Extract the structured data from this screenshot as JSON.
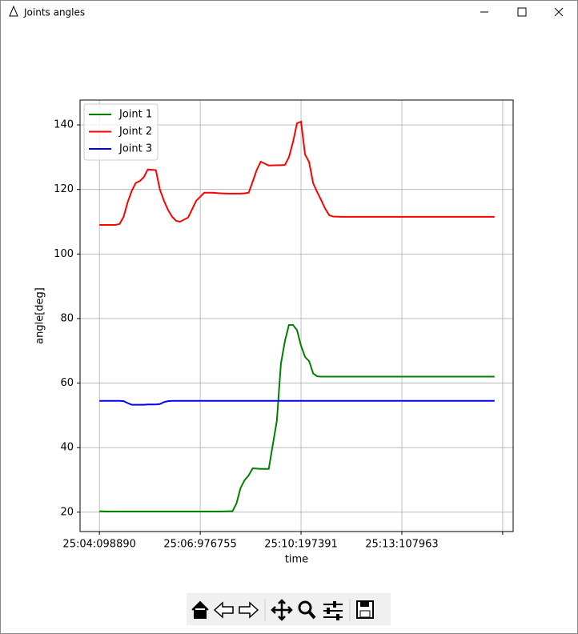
{
  "window": {
    "title": "Joints angles"
  },
  "chart_data": {
    "type": "line",
    "xlabel": "time",
    "ylabel": "angle[deg]",
    "x": [
      0,
      2,
      4,
      5,
      6,
      7,
      8,
      9,
      10,
      11,
      12,
      13,
      14,
      15,
      16,
      17,
      18,
      19,
      20,
      22,
      24,
      26,
      28,
      30,
      32,
      33,
      34,
      35,
      36,
      37,
      38,
      39,
      40,
      41,
      42,
      44,
      45,
      46,
      47,
      48,
      49,
      50,
      51,
      52,
      53,
      54,
      55,
      56,
      57,
      58,
      60,
      65,
      70,
      75,
      80,
      85,
      90,
      95,
      98
    ],
    "series": [
      {
        "name": "Joint 1",
        "color": "#008000",
        "values": [
          20.3,
          20.2,
          20.2,
          20.2,
          20.2,
          20.2,
          20.2,
          20.2,
          20.2,
          20.2,
          20.2,
          20.2,
          20.2,
          20.2,
          20.2,
          20.2,
          20.2,
          20.2,
          20.2,
          20.2,
          20.2,
          20.2,
          20.2,
          20.2,
          20.3,
          20.3,
          22.7,
          27.5,
          29.9,
          31.4,
          33.6,
          33.5,
          33.4,
          33.4,
          33.4,
          48.3,
          66,
          73,
          78,
          78,
          76.4,
          71.6,
          68.1,
          66.8,
          63,
          62.1,
          62,
          62,
          62,
          62,
          62,
          62,
          62,
          62,
          62,
          62,
          62,
          62,
          62
        ]
      },
      {
        "name": "Joint 2",
        "color": "#ff0000",
        "values": [
          109,
          109,
          109,
          109.3,
          111.5,
          116,
          119.5,
          122,
          122.6,
          123.8,
          126.2,
          126.1,
          126,
          120,
          116.5,
          113.7,
          111.6,
          110.3,
          110,
          111.3,
          116.5,
          119,
          119,
          118.8,
          118.7,
          118.7,
          118.7,
          118.7,
          118.8,
          119,
          122.4,
          126,
          128.6,
          128,
          127.4,
          127.5,
          127.5,
          127.6,
          130,
          134.7,
          140.5,
          141,
          130.8,
          128.5,
          121.9,
          119.2,
          116.7,
          114,
          112,
          111.6,
          111.5,
          111.5,
          111.5,
          111.5,
          111.5,
          111.5,
          111.5,
          111.5,
          111.5
        ]
      },
      {
        "name": "Joint 3",
        "color": "#0000ff",
        "values": [
          54.5,
          54.5,
          54.5,
          54.5,
          54.4,
          53.8,
          53.3,
          53.3,
          53.3,
          53.3,
          53.4,
          53.4,
          53.4,
          53.5,
          54.1,
          54.4,
          54.5,
          54.5,
          54.5,
          54.5,
          54.5,
          54.5,
          54.5,
          54.5,
          54.5,
          54.5,
          54.5,
          54.5,
          54.5,
          54.5,
          54.5,
          54.5,
          54.5,
          54.5,
          54.5,
          54.5,
          54.5,
          54.5,
          54.5,
          54.5,
          54.5,
          54.5,
          54.5,
          54.5,
          54.5,
          54.5,
          54.5,
          54.5,
          54.5,
          54.5,
          54.5,
          54.5,
          54.5,
          54.5,
          54.5,
          54.5,
          54.5,
          54.5,
          54.5
        ]
      }
    ],
    "xlim": [
      -4.8,
      102.6
    ],
    "xticks": [
      {
        "value": 0,
        "label": "25:04:098890"
      },
      {
        "value": 25,
        "label": "25:06:976755"
      },
      {
        "value": 50,
        "label": "25:10:197391"
      },
      {
        "value": 75,
        "label": "25:13:107963"
      },
      {
        "value": 100,
        "label": null
      }
    ],
    "ylim": [
      14,
      147.7
    ],
    "yticks": [
      20,
      40,
      60,
      80,
      100,
      120,
      140
    ],
    "grid": true,
    "legend": "upper left"
  }
}
